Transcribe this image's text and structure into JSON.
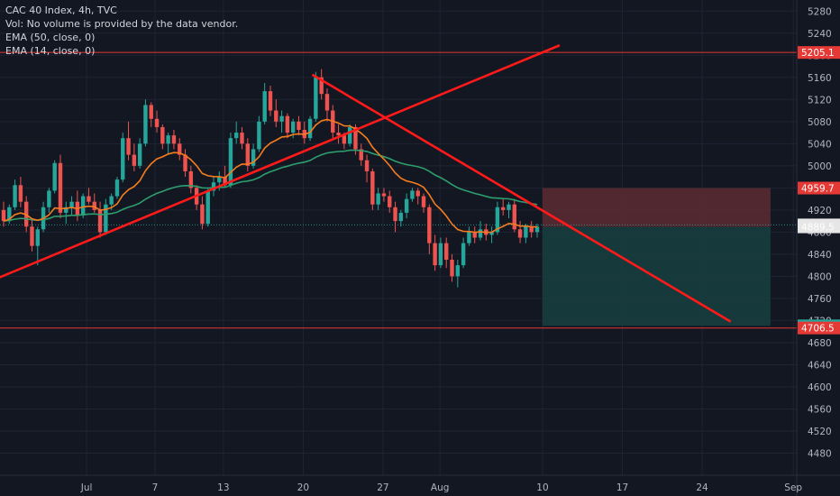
{
  "legend": {
    "title": "CAC 40 Index, 4h, TVC",
    "volume_note": "Vol: No volume is provided by the data vendor.",
    "ema50": "EMA (50, close, 0)",
    "ema14": "EMA (14, close, 0)"
  },
  "colors": {
    "background": "#131722",
    "grid": "#1f2433",
    "bull": "#26a69a",
    "bear": "#ef5350",
    "ema14": "#f57c1f",
    "ema50": "#2e9e6e",
    "trendline": "#ff1a1a",
    "level": "#e53935",
    "stop_zone": "#5d2a33",
    "target_zone": "#17403f",
    "price_tag": "#e6e6e6"
  },
  "chart_data": {
    "type": "candlestick",
    "title": "CAC 40 Index, 4h, TVC",
    "y_axis": {
      "min": 4440,
      "max": 5300,
      "ticks": [
        5280,
        5240,
        5200,
        5160,
        5120,
        5080,
        5040,
        5000,
        4960,
        4920,
        4880,
        4840,
        4800,
        4760,
        4720,
        4680,
        4640,
        4600,
        4560,
        4520,
        4480
      ]
    },
    "x_axis": {
      "ticks": [
        {
          "label": "Jul",
          "day": 1
        },
        {
          "label": "7",
          "day": 7
        },
        {
          "label": "13",
          "day": 13
        },
        {
          "label": "20",
          "day": 20
        },
        {
          "label": "27",
          "day": 27
        },
        {
          "label": "Aug",
          "day": 32
        },
        {
          "label": "10",
          "day": 41
        },
        {
          "label": "17",
          "day": 48
        },
        {
          "label": "24",
          "day": 55
        },
        {
          "label": "Sep",
          "day": 63
        }
      ],
      "range_days": [
        -6.6,
        63.3
      ]
    },
    "candles_ohlc": [
      [
        4920,
        4935,
        4890,
        4900
      ],
      [
        4900,
        4930,
        4895,
        4925
      ],
      [
        4925,
        4975,
        4920,
        4965
      ],
      [
        4965,
        4980,
        4925,
        4935
      ],
      [
        4935,
        4945,
        4880,
        4890
      ],
      [
        4890,
        4905,
        4845,
        4855
      ],
      [
        4855,
        4890,
        4820,
        4885
      ],
      [
        4885,
        4935,
        4880,
        4925
      ],
      [
        4925,
        4960,
        4915,
        4955
      ],
      [
        4955,
        5010,
        4950,
        5005
      ],
      [
        5005,
        5020,
        4905,
        4915
      ],
      [
        4915,
        4935,
        4895,
        4925
      ],
      [
        4925,
        4945,
        4910,
        4935
      ],
      [
        4935,
        4955,
        4900,
        4910
      ],
      [
        4910,
        4950,
        4905,
        4945
      ],
      [
        4945,
        4960,
        4930,
        4935
      ],
      [
        4935,
        4950,
        4915,
        4920
      ],
      [
        4920,
        4935,
        4870,
        4880
      ],
      [
        4880,
        4940,
        4875,
        4930
      ],
      [
        4930,
        4950,
        4920,
        4945
      ],
      [
        4945,
        4980,
        4940,
        4975
      ],
      [
        4975,
        5060,
        4970,
        5050
      ],
      [
        5050,
        5080,
        5010,
        5020
      ],
      [
        5020,
        5040,
        4990,
        5000
      ],
      [
        5000,
        5050,
        4995,
        5040
      ],
      [
        5040,
        5120,
        5035,
        5110
      ],
      [
        5110,
        5115,
        5070,
        5085
      ],
      [
        5085,
        5100,
        5060,
        5070
      ],
      [
        5070,
        5075,
        5030,
        5040
      ],
      [
        5040,
        5060,
        5020,
        5055
      ],
      [
        5055,
        5065,
        5030,
        5040
      ],
      [
        5040,
        5050,
        5010,
        5020
      ],
      [
        5020,
        5030,
        4980,
        4990
      ],
      [
        4990,
        5000,
        4950,
        4960
      ],
      [
        4960,
        4965,
        4920,
        4930
      ],
      [
        4930,
        4945,
        4885,
        4895
      ],
      [
        4895,
        4960,
        4890,
        4955
      ],
      [
        4955,
        4980,
        4945,
        4970
      ],
      [
        4970,
        4990,
        4955,
        4980
      ],
      [
        4980,
        5000,
        4960,
        4965
      ],
      [
        4965,
        5060,
        4960,
        5050
      ],
      [
        5050,
        5080,
        5040,
        5060
      ],
      [
        5060,
        5070,
        5030,
        5040
      ],
      [
        5040,
        5050,
        4990,
        5000
      ],
      [
        5000,
        5040,
        4995,
        5030
      ],
      [
        5030,
        5090,
        5025,
        5080
      ],
      [
        5080,
        5150,
        5075,
        5135
      ],
      [
        5135,
        5145,
        5090,
        5100
      ],
      [
        5100,
        5120,
        5070,
        5080
      ],
      [
        5080,
        5100,
        5060,
        5090
      ],
      [
        5090,
        5095,
        5050,
        5060
      ],
      [
        5060,
        5085,
        5050,
        5080
      ],
      [
        5080,
        5090,
        5055,
        5065
      ],
      [
        5065,
        5080,
        5040,
        5050
      ],
      [
        5050,
        5090,
        5045,
        5085
      ],
      [
        5085,
        5170,
        5080,
        5160
      ],
      [
        5160,
        5175,
        5120,
        5130
      ],
      [
        5130,
        5140,
        5080,
        5100
      ],
      [
        5100,
        5110,
        5050,
        5060
      ],
      [
        5060,
        5075,
        5040,
        5055
      ],
      [
        5055,
        5060,
        5030,
        5040
      ],
      [
        5040,
        5075,
        5035,
        5070
      ],
      [
        5070,
        5075,
        5020,
        5030
      ],
      [
        5030,
        5040,
        5000,
        5010
      ],
      [
        5010,
        5020,
        4970,
        4990
      ],
      [
        4990,
        4995,
        4920,
        4930
      ],
      [
        4930,
        4960,
        4920,
        4950
      ],
      [
        4950,
        4960,
        4935,
        4945
      ],
      [
        4945,
        4955,
        4915,
        4925
      ],
      [
        4925,
        4935,
        4880,
        4900
      ],
      [
        4900,
        4920,
        4890,
        4915
      ],
      [
        4915,
        4950,
        4905,
        4940
      ],
      [
        4940,
        4960,
        4935,
        4955
      ],
      [
        4955,
        4960,
        4930,
        4945
      ],
      [
        4945,
        4950,
        4915,
        4925
      ],
      [
        4925,
        4930,
        4840,
        4860
      ],
      [
        4860,
        4875,
        4810,
        4820
      ],
      [
        4820,
        4870,
        4815,
        4860
      ],
      [
        4860,
        4870,
        4815,
        4830
      ],
      [
        4830,
        4840,
        4790,
        4800
      ],
      [
        4800,
        4830,
        4780,
        4820
      ],
      [
        4820,
        4870,
        4815,
        4860
      ],
      [
        4860,
        4890,
        4855,
        4880
      ],
      [
        4880,
        4890,
        4860,
        4870
      ],
      [
        4870,
        4900,
        4865,
        4885
      ],
      [
        4885,
        4895,
        4865,
        4875
      ],
      [
        4875,
        4890,
        4860,
        4880
      ],
      [
        4880,
        4935,
        4875,
        4925
      ],
      [
        4925,
        4940,
        4910,
        4920
      ],
      [
        4920,
        4935,
        4905,
        4930
      ],
      [
        4930,
        4940,
        4880,
        4885
      ],
      [
        4885,
        4900,
        4860,
        4870
      ],
      [
        4870,
        4895,
        4860,
        4890
      ],
      [
        4890,
        4900,
        4870,
        4880
      ],
      [
        4880,
        4895,
        4870,
        4890
      ]
    ],
    "series": [
      {
        "name": "EMA (14, close, 0)",
        "color": "#f57c1f"
      },
      {
        "name": "EMA (50, close, 0)",
        "color": "#2e9e6e"
      }
    ],
    "trendlines": [
      {
        "from": {
          "day": -7,
          "price": 4795
        },
        "to": {
          "day": 42.5,
          "price": 5218
        }
      },
      {
        "from": {
          "day": 20.8,
          "price": 5165
        },
        "to": {
          "day": 57.5,
          "price": 4718
        }
      }
    ],
    "horizontal_levels": [
      5205.1,
      4706.5
    ],
    "current_price": 4893.0,
    "position": {
      "entry": 4889.5,
      "stop": 4959.7,
      "target": 4710.4,
      "start_day": 41,
      "end_day": 61
    },
    "price_labels": [
      {
        "text": "5205.1",
        "value": 5205.1,
        "color": "#e53935"
      },
      {
        "text": "4959.7",
        "value": 4959.7,
        "color": "#e53935"
      },
      {
        "text": "4893.0",
        "value": 4893.0,
        "color": "#e6e6e6"
      },
      {
        "text": "4889.5",
        "value": 4889.5,
        "color": "#e6e6e6"
      },
      {
        "text": "4710.4",
        "value": 4710.4,
        "color": "#26a69a"
      },
      {
        "text": "4706.5",
        "value": 4706.5,
        "color": "#e53935"
      }
    ]
  }
}
